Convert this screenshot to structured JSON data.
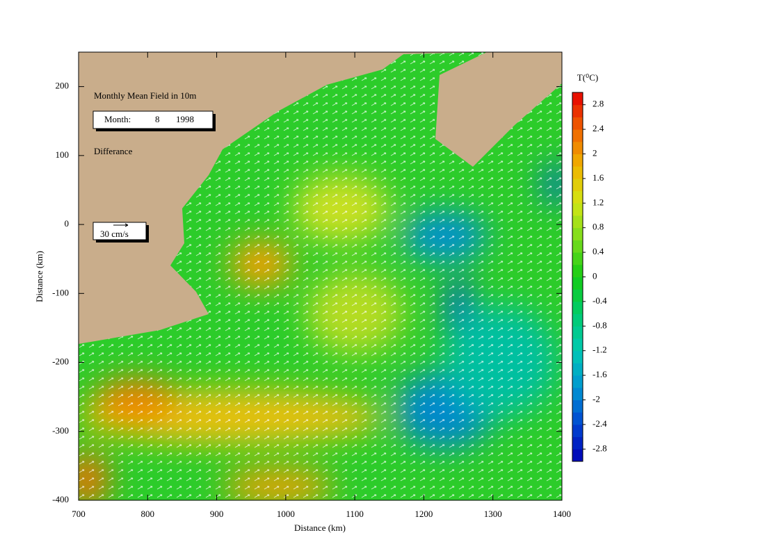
{
  "chart_data": {
    "type": "vector-field",
    "title": "Monthly Mean Field in 10m",
    "month_label": "Month:",
    "month": 8,
    "year": 1998,
    "subtitle": "Differance",
    "scale_label": "30 cm/s",
    "xlabel": "Distance (km)",
    "ylabel": "Distance (km)",
    "xlim": [
      700,
      1400
    ],
    "xticks": [
      700,
      800,
      900,
      1000,
      1100,
      1200,
      1300,
      1400
    ],
    "ylim": [
      -400,
      250
    ],
    "yticks": [
      -400,
      -300,
      -200,
      -100,
      0,
      100,
      200
    ],
    "colorbar": {
      "label": "T(⁰C)",
      "lim": [
        -3,
        3
      ],
      "ticks": [
        2.8,
        2.4,
        2,
        1.6,
        1.2,
        0.8,
        0.4,
        0,
        -0.4,
        -0.8,
        -1.2,
        -1.6,
        -2,
        -2.4,
        -2.8
      ],
      "colormap": [
        "#0000b4",
        "#0046d2",
        "#0096d2",
        "#00c8b4",
        "#00cc6e",
        "#14cc14",
        "#78dc1e",
        "#d2e614",
        "#f0b400",
        "#f06400",
        "#e60000"
      ]
    }
  }
}
